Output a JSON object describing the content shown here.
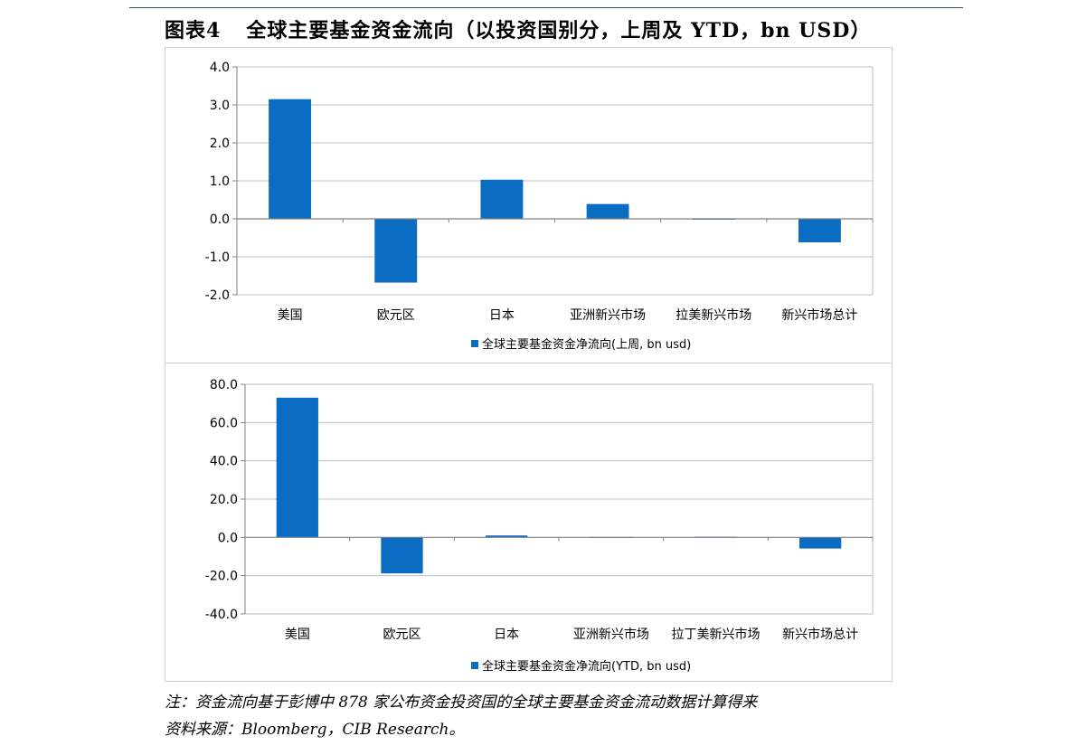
{
  "title": {
    "figure_number": "图表4",
    "text": "全球主要基金资金流向（以投资国别分，上周及 YTD，bn USD）"
  },
  "notes": {
    "line1": "注：资金流向基于彭博中 878 家公布资金投资国的全球主要基金资金流动数据计算得来",
    "line2": "资料来源：Bloomberg，CIB Research。"
  },
  "colors": {
    "bar": "#0a6cc2",
    "axis": "#808080",
    "grid": "#bfbfbf",
    "frame": "#d0d0d0"
  },
  "chart_data": [
    {
      "type": "bar",
      "categories": [
        "美国",
        "欧元区",
        "日本",
        "亚洲新兴市场",
        "拉美新兴市场",
        "新兴市场总计"
      ],
      "series": [
        {
          "name": "全球主要基金资金净流向(上周, bn usd)",
          "values": [
            3.15,
            -1.68,
            1.03,
            0.39,
            0.0,
            -0.62
          ]
        }
      ],
      "ylim": [
        -2.0,
        4.0
      ],
      "yticks": [
        4.0,
        3.0,
        2.0,
        1.0,
        0.0,
        -1.0,
        -2.0
      ],
      "ytick_labels": [
        "4.0",
        "3.0",
        "2.0",
        "1.0",
        "0.0",
        "-1.0",
        "-2.0"
      ],
      "grid": true,
      "legend": "bottom"
    },
    {
      "type": "bar",
      "categories": [
        "美国",
        "欧元区",
        "日本",
        "亚洲新兴市场",
        "拉丁美新兴市场",
        "新兴市场总计"
      ],
      "series": [
        {
          "name": "全球主要基金资金净流向(YTD, bn usd)",
          "values": [
            73.0,
            -18.8,
            1.0,
            0.2,
            0.3,
            -5.8
          ]
        }
      ],
      "ylim": [
        -40.0,
        80.0
      ],
      "yticks": [
        80.0,
        60.0,
        40.0,
        20.0,
        0.0,
        -20.0,
        -40.0
      ],
      "ytick_labels": [
        "80.0",
        "60.0",
        "40.0",
        "20.0",
        "0.0",
        "-20.0",
        "-40.0"
      ],
      "grid": true,
      "legend": "bottom"
    }
  ]
}
